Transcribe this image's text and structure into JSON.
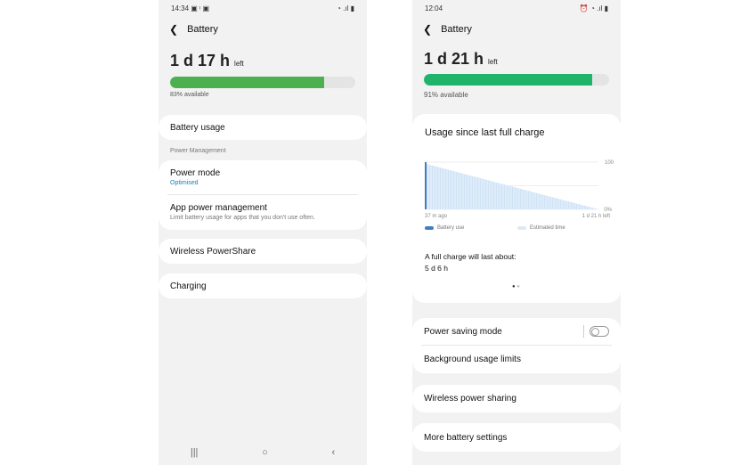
{
  "left_phone": {
    "status": {
      "time": "14:34",
      "icons": "▣ ᵎ ▣",
      "right_icons": "wifi signal battery"
    },
    "title": "Battery",
    "time_left": "1 d 17 h",
    "left_suffix": "left",
    "battery_percent": 83,
    "available": "83% available",
    "bar_color": "#4caf50",
    "battery_usage": "Battery usage",
    "section": "Power Management",
    "power_mode": "Power mode",
    "power_mode_value": "Optimised",
    "app_power": "App power management",
    "app_power_sub": "Limit battery usage for apps that you don't use often.",
    "wireless": "Wireless PowerShare",
    "charging": "Charging",
    "nav": [
      "|||",
      "○",
      "‹"
    ]
  },
  "right_phone": {
    "status": {
      "time": "12:04",
      "right_icons": "alarm wifi signal battery"
    },
    "title": "Battery",
    "time_left": "1 d 21 h",
    "left_suffix": "left",
    "battery_percent": 91,
    "available": "91% available",
    "bar_color": "#1fb36b",
    "usage_title": "Usage since last full charge",
    "chart_data": {
      "type": "area",
      "x_labels": [
        "37 m ago",
        "1 d 21 h left"
      ],
      "y_ticks": [
        "100",
        "0%"
      ],
      "ylim": [
        0,
        100
      ],
      "series": [
        {
          "name": "Battery use",
          "color": "#3f7fc4",
          "values": [
            100,
            96
          ]
        },
        {
          "name": "Estimated time",
          "color": "#cfe3f7",
          "values": [
            96,
            0
          ]
        }
      ],
      "legend": "bottom"
    },
    "full_charge_label": "A full charge will last about:",
    "full_charge_value": "5 d 6 h",
    "power_saving": "Power saving mode",
    "power_saving_on": false,
    "background_limits": "Background usage limits",
    "wireless": "Wireless power sharing",
    "more": "More battery settings"
  }
}
